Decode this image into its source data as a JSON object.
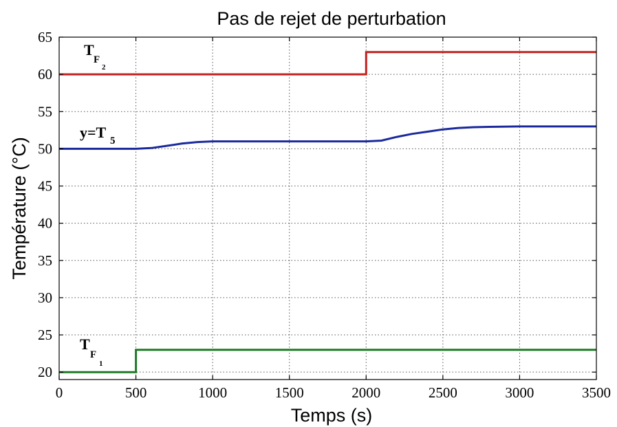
{
  "chart_data": {
    "type": "line",
    "title": "Pas de rejet de perturbation",
    "xlabel": "Temps (s)",
    "ylabel": "Température (°C)",
    "xlim": [
      0,
      3500
    ],
    "ylim": [
      19,
      65
    ],
    "xticks": [
      0,
      500,
      1000,
      1500,
      2000,
      2500,
      3000,
      3500
    ],
    "yticks": [
      20,
      25,
      30,
      35,
      40,
      45,
      50,
      55,
      60,
      65
    ],
    "grid": true,
    "series": [
      {
        "key": "tf2",
        "label_main": "T",
        "label_sub": "F",
        "label_subsub": "2",
        "color": "#c0211f",
        "x": [
          0,
          2000,
          2000,
          3500
        ],
        "y": [
          60,
          60,
          63,
          63
        ]
      },
      {
        "key": "t5",
        "label_main": "y=T",
        "label_sub": "5",
        "label_subsub": "",
        "color": "#1a2a9c",
        "x": [
          0,
          500,
          600,
          700,
          800,
          900,
          1000,
          1200,
          1500,
          2000,
          2100,
          2200,
          2300,
          2400,
          2500,
          2600,
          2700,
          2800,
          3000,
          3200,
          3500
        ],
        "y": [
          50,
          50,
          50.1,
          50.4,
          50.7,
          50.9,
          51,
          51,
          51,
          51,
          51.1,
          51.6,
          52,
          52.3,
          52.6,
          52.8,
          52.9,
          52.95,
          53,
          53,
          53
        ]
      },
      {
        "key": "tf1",
        "label_main": "T",
        "label_sub": "F",
        "label_subsub": "1",
        "color": "#1e7a25",
        "x": [
          0,
          500,
          500,
          3500
        ],
        "y": [
          20,
          20,
          23,
          23
        ]
      }
    ]
  }
}
